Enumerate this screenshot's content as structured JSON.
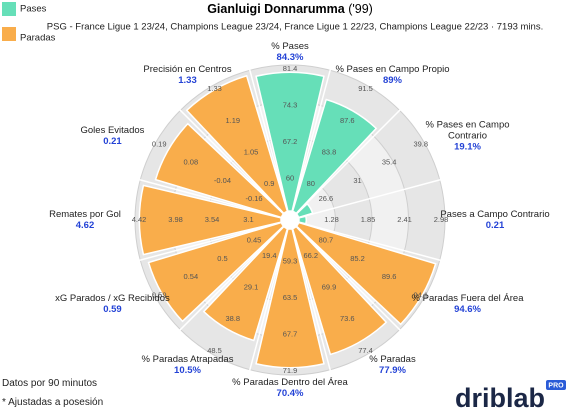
{
  "chart_data": {
    "type": "polar_bar",
    "title": "Gianluigi Donnarumma",
    "title_note": "('99)",
    "subtitle": "PSG - France Ligue 1 23/24, Champions League 23/24, France Ligue 1 22/23, Champions League 22/23 · 7193 mins.",
    "series": [
      {
        "name": "Pases",
        "color": "#66dfb8"
      },
      {
        "name": "Paradas",
        "color": "#f9ad4b"
      }
    ],
    "categories": [
      "% Pases",
      "% Pases en Campo Propio",
      "% Pases en Campo Contrario",
      "Pases a Campo Contrario",
      "% Paradas Fuera del Área",
      "% Paradas",
      "% Paradas Dentro del Área",
      "% Paradas Atrapadas",
      "xG Parados / xG Recibidos",
      "Remates por Gol",
      "Goles Evitados",
      "Precisión en Centros"
    ],
    "category_series": [
      0,
      0,
      0,
      0,
      1,
      1,
      1,
      1,
      1,
      1,
      1,
      1
    ],
    "metric_labels": [
      "84.3%",
      "89%",
      "19.1%",
      "0.21",
      "94.6%",
      "77.9%",
      "70.4%",
      "10.5%",
      "0.59",
      "4.62",
      "0.21",
      "1.33"
    ],
    "values": [
      95,
      80,
      10,
      5,
      98,
      90,
      95,
      80,
      95,
      97,
      90,
      97
    ],
    "rlim": [
      0,
      100
    ],
    "rticks": [
      25,
      50,
      75,
      100
    ],
    "axis_ticks": [
      [
        60,
        67.2,
        74.3,
        81.4
      ],
      [
        80,
        83.8,
        87.6,
        91.5
      ],
      [
        26.6,
        31,
        35.4,
        39.8
      ],
      [
        1.28,
        1.85,
        2.41,
        2.98
      ],
      [
        80.7,
        85.2,
        89.6,
        94.1
      ],
      [
        66.2,
        69.9,
        73.6,
        77.4
      ],
      [
        59.3,
        63.5,
        67.7,
        71.9
      ],
      [
        19.4,
        29.1,
        38.8,
        48.5
      ],
      [
        0.45,
        0.5,
        0.54,
        0.59
      ],
      [
        3.1,
        3.54,
        3.98,
        4.42
      ],
      [
        -0.16,
        -0.04,
        0.08,
        0.19
      ],
      [
        0.9,
        1.05,
        1.19,
        1.33
      ]
    ],
    "notes": [
      "Datos por 90 minutos",
      "* Ajustadas a posesión"
    ],
    "brand": "driblab",
    "brand_badge": "PRO"
  }
}
